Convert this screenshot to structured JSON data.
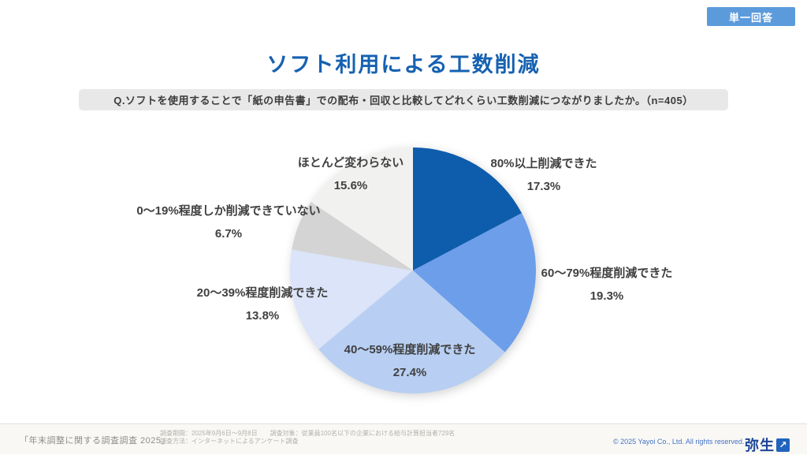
{
  "badge": {
    "label": "単一回答"
  },
  "header": {
    "title": "ソフト利用による工数削減"
  },
  "question": {
    "text": "Q.ソフトを使用することで「紙の申告書」での配布・回収と比較してどれくらい工数削減につながりましたか。（n=405）"
  },
  "chart_data": {
    "type": "pie",
    "title": "ソフト利用による工数削減",
    "n": 405,
    "start_angle_deg": 0,
    "direction": "clockwise",
    "legend_position": "none",
    "labels_outside": true,
    "slices": [
      {
        "label": "80%以上削減できた",
        "value": 17.3,
        "pct_label": "17.3%",
        "color": "#0E5DAC"
      },
      {
        "label": "60〜79%程度削減できた",
        "value": 19.3,
        "pct_label": "19.3%",
        "color": "#6D9EEA"
      },
      {
        "label": "40〜59%程度削減できた",
        "value": 27.4,
        "pct_label": "27.4%",
        "color": "#B8CFF3"
      },
      {
        "label": "20〜39%程度削減できた",
        "value": 13.8,
        "pct_label": "13.8%",
        "color": "#DBE4F8"
      },
      {
        "label": "0〜19%程度しか削減できていない",
        "value": 6.7,
        "pct_label": "6.7%",
        "color": "#D4D4D4"
      },
      {
        "label": "ほとんど変わらない",
        "value": 15.6,
        "pct_label": "15.6%",
        "color": "#F1F1F0"
      }
    ]
  },
  "footer": {
    "source": "「年末調整に関する調査調査 2025」",
    "survey_line1": "調査期間：2025年9月6日～9月8日　　調査対象：従業員100名以下の企業における給与計算担当者729名",
    "survey_line2": "調査方法：インターネットによるアンケート調査",
    "copyright": "© 2025 Yayoi Co., Ltd.  All rights reserved.",
    "logo_text": "弥生",
    "logo_arrow_icon": "↗"
  },
  "colors": {
    "title_blue": "#1661B1",
    "badge_blue": "#5C9BDB",
    "copyright_blue": "#4472C4",
    "logo_blue": "#1B4498"
  }
}
